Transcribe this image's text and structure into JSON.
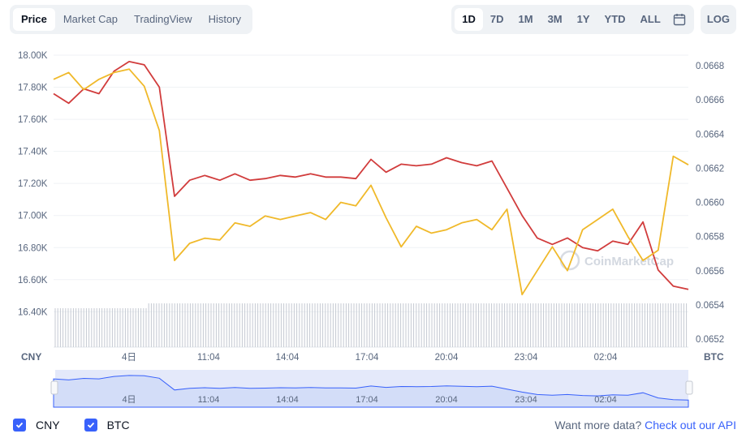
{
  "tabs": [
    "Price",
    "Market Cap",
    "TradingView",
    "History"
  ],
  "active_tab": "Price",
  "ranges": [
    "1D",
    "7D",
    "1M",
    "3M",
    "1Y",
    "YTD",
    "ALL"
  ],
  "active_range": "1D",
  "calendar_icon": "calendar-icon",
  "log_label": "LOG",
  "legend": {
    "cny": "CNY",
    "btc": "BTC"
  },
  "footer": {
    "text": "Want more data?",
    "link": "Check out our API"
  },
  "watermark": "CoinMarketCap",
  "colors": {
    "cny_line": "#d13c3c",
    "btc_line": "#f0b92a",
    "volume": "#c4c9d2",
    "navigator_fill": "#dde5fa",
    "navigator_line": "#3861fb"
  },
  "chart_data": {
    "type": "line",
    "x_ticks": [
      "4日",
      "11:04",
      "14:04",
      "17:04",
      "20:04",
      "23:04",
      "02:04"
    ],
    "left_axis": {
      "label": "CNY",
      "ticks": [
        "18.00K",
        "17.80K",
        "17.60K",
        "17.40K",
        "17.20K",
        "17.00K",
        "16.80K",
        "16.60K",
        "16.40K"
      ],
      "ylim": [
        16400,
        18000
      ]
    },
    "right_axis": {
      "label": "BTC",
      "ticks": [
        "0.0668",
        "0.0666",
        "0.0664",
        "0.0662",
        "0.0660",
        "0.0658",
        "0.0656",
        "0.0654",
        "0.0652"
      ],
      "ylim": [
        0.0652,
        0.0668
      ]
    },
    "series": [
      {
        "name": "CNY",
        "axis": "left",
        "values": [
          17760,
          17700,
          17790,
          17760,
          17900,
          17960,
          17940,
          17800,
          17120,
          17220,
          17250,
          17220,
          17260,
          17220,
          17230,
          17250,
          17240,
          17260,
          17240,
          17240,
          17230,
          17350,
          17270,
          17320,
          17310,
          17320,
          17360,
          17330,
          17310,
          17340,
          17170,
          17000,
          16860,
          16820,
          16860,
          16800,
          16780,
          16840,
          16820,
          16960,
          16660,
          16560,
          16540
        ]
      },
      {
        "name": "BTC",
        "axis": "right",
        "values": [
          0.06672,
          0.06676,
          0.06666,
          0.06672,
          0.06676,
          0.06678,
          0.06668,
          0.06642,
          0.06566,
          0.06576,
          0.06579,
          0.06578,
          0.06588,
          0.06586,
          0.06592,
          0.0659,
          0.06592,
          0.06594,
          0.0659,
          0.066,
          0.06598,
          0.0661,
          0.06591,
          0.06574,
          0.06586,
          0.06582,
          0.06584,
          0.06588,
          0.0659,
          0.06584,
          0.06596,
          0.06546,
          0.0656,
          0.06574,
          0.0656,
          0.06584,
          0.0659,
          0.06596,
          0.0658,
          0.06566,
          0.06572,
          0.06627,
          0.06622
        ]
      }
    ]
  }
}
